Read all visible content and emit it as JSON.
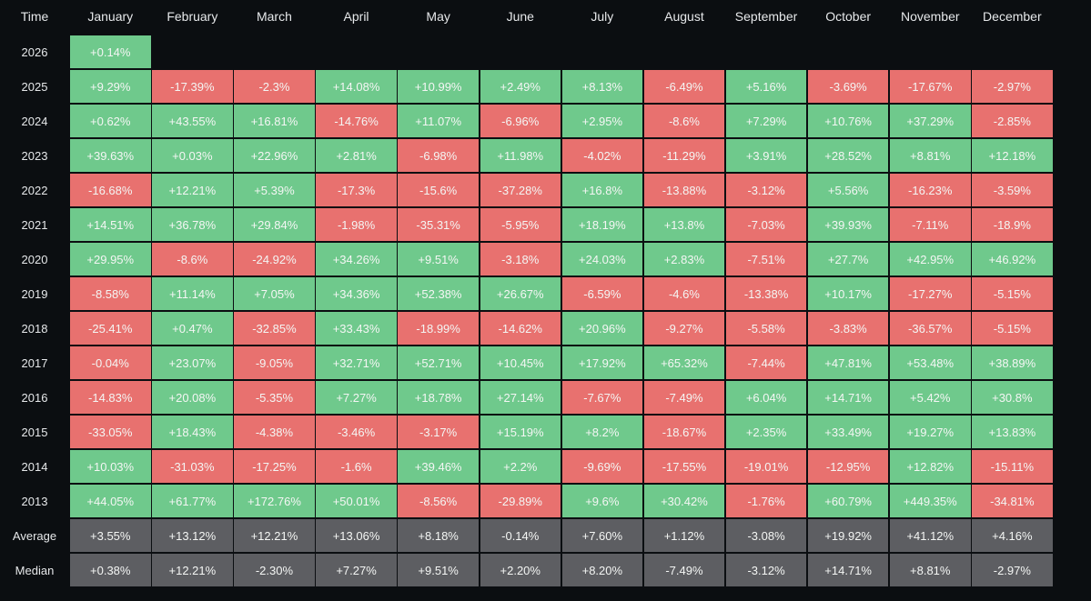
{
  "table": {
    "header": [
      "Time",
      "January",
      "February",
      "March",
      "April",
      "May",
      "June",
      "July",
      "August",
      "September",
      "October",
      "November",
      "December"
    ],
    "rows": [
      [
        "2026",
        "+0.14%",
        null,
        null,
        null,
        null,
        null,
        null,
        null,
        null,
        null,
        null,
        null
      ],
      [
        "2025",
        "+9.29%",
        "-17.39%",
        "-2.3%",
        "+14.08%",
        "+10.99%",
        "+2.49%",
        "+8.13%",
        "-6.49%",
        "+5.16%",
        "-3.69%",
        "-17.67%",
        "-2.97%"
      ],
      [
        "2024",
        "+0.62%",
        "+43.55%",
        "+16.81%",
        "-14.76%",
        "+11.07%",
        "-6.96%",
        "+2.95%",
        "-8.6%",
        "+7.29%",
        "+10.76%",
        "+37.29%",
        "-2.85%"
      ],
      [
        "2023",
        "+39.63%",
        "+0.03%",
        "+22.96%",
        "+2.81%",
        "-6.98%",
        "+11.98%",
        "-4.02%",
        "-11.29%",
        "+3.91%",
        "+28.52%",
        "+8.81%",
        "+12.18%"
      ],
      [
        "2022",
        "-16.68%",
        "+12.21%",
        "+5.39%",
        "-17.3%",
        "-15.6%",
        "-37.28%",
        "+16.8%",
        "-13.88%",
        "-3.12%",
        "+5.56%",
        "-16.23%",
        "-3.59%"
      ],
      [
        "2021",
        "+14.51%",
        "+36.78%",
        "+29.84%",
        "-1.98%",
        "-35.31%",
        "-5.95%",
        "+18.19%",
        "+13.8%",
        "-7.03%",
        "+39.93%",
        "-7.11%",
        "-18.9%"
      ],
      [
        "2020",
        "+29.95%",
        "-8.6%",
        "-24.92%",
        "+34.26%",
        "+9.51%",
        "-3.18%",
        "+24.03%",
        "+2.83%",
        "-7.51%",
        "+27.7%",
        "+42.95%",
        "+46.92%"
      ],
      [
        "2019",
        "-8.58%",
        "+11.14%",
        "+7.05%",
        "+34.36%",
        "+52.38%",
        "+26.67%",
        "-6.59%",
        "-4.6%",
        "-13.38%",
        "+10.17%",
        "-17.27%",
        "-5.15%"
      ],
      [
        "2018",
        "-25.41%",
        "+0.47%",
        "-32.85%",
        "+33.43%",
        "-18.99%",
        "-14.62%",
        "+20.96%",
        "-9.27%",
        "-5.58%",
        "-3.83%",
        "-36.57%",
        "-5.15%"
      ],
      [
        "2017",
        "-0.04%",
        "+23.07%",
        "-9.05%",
        "+32.71%",
        "+52.71%",
        "+10.45%",
        "+17.92%",
        "+65.32%",
        "-7.44%",
        "+47.81%",
        "+53.48%",
        "+38.89%"
      ],
      [
        "2016",
        "-14.83%",
        "+20.08%",
        "-5.35%",
        "+7.27%",
        "+18.78%",
        "+27.14%",
        "-7.67%",
        "-7.49%",
        "+6.04%",
        "+14.71%",
        "+5.42%",
        "+30.8%"
      ],
      [
        "2015",
        "-33.05%",
        "+18.43%",
        "-4.38%",
        "-3.46%",
        "-3.17%",
        "+15.19%",
        "+8.2%",
        "-18.67%",
        "+2.35%",
        "+33.49%",
        "+19.27%",
        "+13.83%"
      ],
      [
        "2014",
        "+10.03%",
        "-31.03%",
        "-17.25%",
        "-1.6%",
        "+39.46%",
        "+2.2%",
        "-9.69%",
        "-17.55%",
        "-19.01%",
        "-12.95%",
        "+12.82%",
        "-15.11%"
      ],
      [
        "2013",
        "+44.05%",
        "+61.77%",
        "+172.76%",
        "+50.01%",
        "-8.56%",
        "-29.89%",
        "+9.6%",
        "+30.42%",
        "-1.76%",
        "+60.79%",
        "+449.35%",
        "-34.81%"
      ]
    ],
    "summary": [
      [
        "Average",
        "+3.55%",
        "+13.12%",
        "+12.21%",
        "+13.06%",
        "+8.18%",
        "-0.14%",
        "+7.60%",
        "+1.12%",
        "-3.08%",
        "+19.92%",
        "+41.12%",
        "+4.16%"
      ],
      [
        "Median",
        "+0.38%",
        "+12.21%",
        "-2.30%",
        "+7.27%",
        "+9.51%",
        "+2.20%",
        "+8.20%",
        "-7.49%",
        "-3.12%",
        "+14.71%",
        "+8.81%",
        "-2.97%"
      ]
    ]
  }
}
